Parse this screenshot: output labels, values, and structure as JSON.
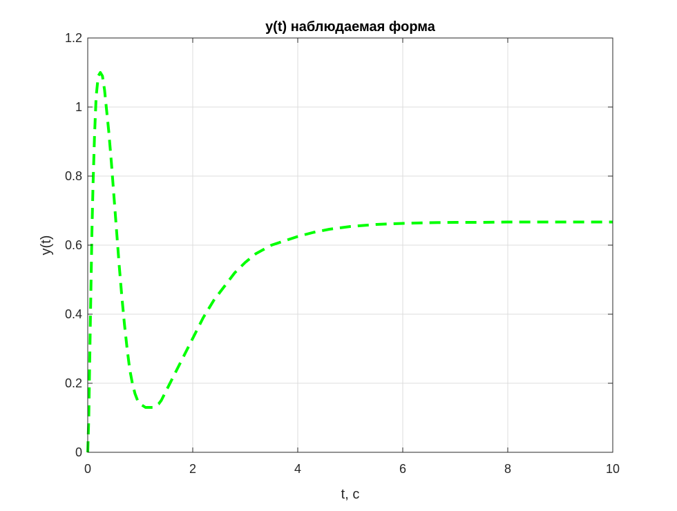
{
  "chart_data": {
    "type": "line",
    "title": "y(t) наблюдаемая форма",
    "xlabel": "t, c",
    "ylabel": "y(t)",
    "xlim": [
      0,
      10
    ],
    "ylim": [
      0,
      1.2
    ],
    "xticks": [
      0,
      2,
      4,
      6,
      8,
      10
    ],
    "yticks": [
      0,
      0.2,
      0.4,
      0.6,
      0.8,
      1,
      1.2
    ],
    "xtick_labels": [
      "0",
      "2",
      "4",
      "6",
      "8",
      "10"
    ],
    "ytick_labels": [
      "0",
      "0.2",
      "0.4",
      "0.6",
      "0.8",
      "1",
      "1.2"
    ],
    "grid": true,
    "series": [
      {
        "color": "#00ff00",
        "line_style": "dashed",
        "x": [
          0,
          0.02,
          0.05,
          0.08,
          0.1,
          0.13,
          0.16,
          0.2,
          0.24,
          0.28,
          0.32,
          0.36,
          0.4,
          0.45,
          0.5,
          0.55,
          0.6,
          0.65,
          0.7,
          0.75,
          0.8,
          0.85,
          0.9,
          0.95,
          1.0,
          1.05,
          1.1,
          1.15,
          1.2,
          1.25,
          1.3,
          1.35,
          1.4,
          1.5,
          1.6,
          1.7,
          1.8,
          1.9,
          2.0,
          2.2,
          2.4,
          2.6,
          2.8,
          3.0,
          3.2,
          3.5,
          3.8,
          4.0,
          4.3,
          4.6,
          5.0,
          5.5,
          6.0,
          6.5,
          7.0,
          7.5,
          8.0,
          8.5,
          9.0,
          9.5,
          10.0
        ],
        "y": [
          0,
          0.1,
          0.38,
          0.64,
          0.77,
          0.92,
          1.03,
          1.09,
          1.1,
          1.09,
          1.05,
          0.99,
          0.93,
          0.84,
          0.74,
          0.64,
          0.54,
          0.45,
          0.37,
          0.3,
          0.24,
          0.2,
          0.17,
          0.15,
          0.14,
          0.135,
          0.13,
          0.13,
          0.13,
          0.13,
          0.135,
          0.14,
          0.15,
          0.18,
          0.21,
          0.24,
          0.27,
          0.3,
          0.33,
          0.39,
          0.44,
          0.48,
          0.52,
          0.55,
          0.575,
          0.6,
          0.615,
          0.625,
          0.637,
          0.646,
          0.654,
          0.66,
          0.663,
          0.665,
          0.666,
          0.666,
          0.667,
          0.667,
          0.667,
          0.667,
          0.667
        ]
      }
    ]
  }
}
